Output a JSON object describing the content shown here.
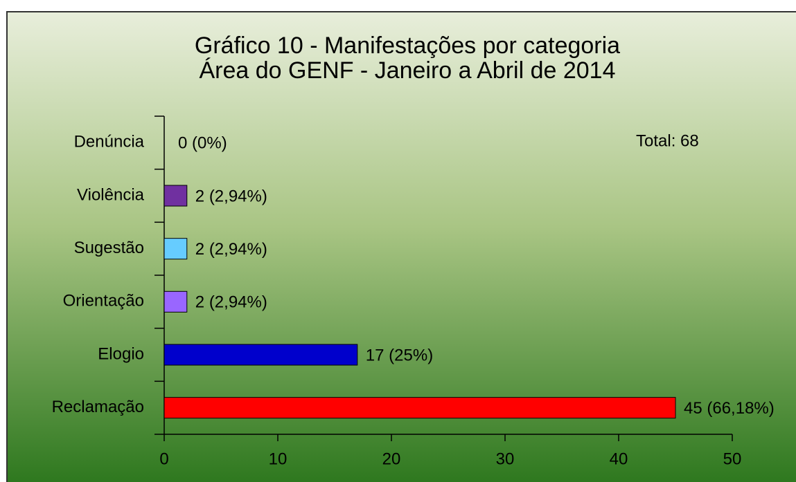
{
  "chart_data": {
    "type": "bar",
    "orientation": "horizontal",
    "title": "Gráfico 10 - Manifestações por categoria",
    "subtitle": "Área do GENF - Janeiro a Abril de 2014",
    "annotation": "Total: 68",
    "categories": [
      "Denúncia",
      "Violência",
      "Sugestão",
      "Orientação",
      "Elogio",
      "Reclamação"
    ],
    "values": [
      0,
      2,
      2,
      2,
      17,
      45
    ],
    "value_labels": [
      "0 (0%)",
      "2 (2,94%)",
      "2 (2,94%)",
      "2 (2,94%)",
      "17 (25%)",
      "45 (66,18%)"
    ],
    "colors": [
      null,
      "#7030a0",
      "#66ccff",
      "#9966ff",
      "#0000cc",
      "#ff0000"
    ],
    "xlim": [
      0,
      50
    ],
    "xticks": [
      0,
      10,
      20,
      30,
      40,
      50
    ],
    "grid": false
  }
}
